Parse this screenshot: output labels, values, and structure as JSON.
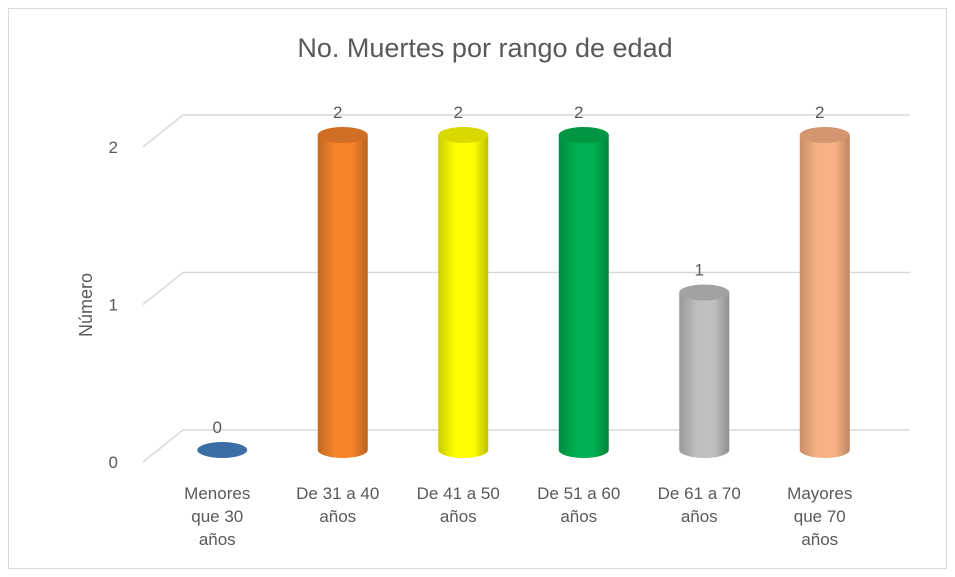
{
  "chart_data": {
    "type": "bar3d",
    "title": "No. Muertes por rango de edad",
    "y_label": "Número",
    "categories": [
      "Menores que 30 años",
      "De 31 a 40 años",
      "De 41 a 50 años",
      "De 51 a 60 años",
      "De 61 a 70 años",
      "Mayores que 70 años"
    ],
    "values": [
      0,
      2,
      2,
      2,
      1,
      2
    ],
    "colors": [
      "#3a6ea5",
      "#f5832a",
      "#ffff00",
      "#00b050",
      "#bfbfbf",
      "#f8b184"
    ],
    "ylim": [
      0,
      2
    ],
    "yticks": [
      0,
      1,
      2
    ],
    "grid": true
  }
}
